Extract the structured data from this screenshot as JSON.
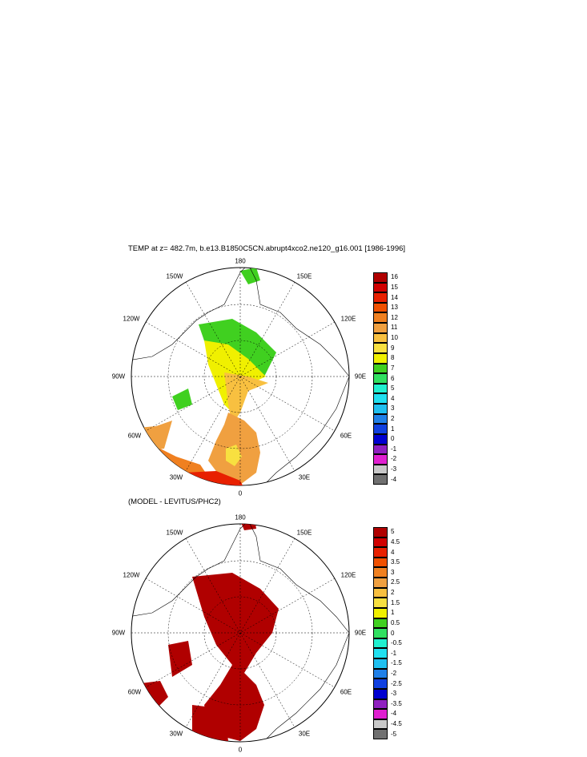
{
  "figure": {
    "title": "TEMP at z= 482.7m, b.e13.B1850C5CN.abrupt4xco2.ne120_g16.001 [1986-1996]",
    "subtitle": "(MODEL - LEVITUS/PHC2)"
  },
  "longitude_labels": [
    "180",
    "150E",
    "120E",
    "90E",
    "60E",
    "30E",
    "0",
    "30W",
    "60W",
    "90W",
    "120W",
    "150W"
  ],
  "panel_top": {
    "colorbar_labels": [
      "16",
      "15",
      "14",
      "13",
      "12",
      "11",
      "10",
      "9",
      "8",
      "7",
      "6",
      "5",
      "4",
      "3",
      "2",
      "1",
      "0",
      "-1",
      "-2",
      "-3",
      "-4"
    ],
    "colorbar_colors": [
      "#b00000",
      "#d00000",
      "#e82000",
      "#f05000",
      "#f08020",
      "#f0a040",
      "#f8c040",
      "#f8e040",
      "#f0f000",
      "#40d020",
      "#30e060",
      "#20f0d0",
      "#20e0f0",
      "#20c0f0",
      "#2080e8",
      "#1040e0",
      "#0000d0",
      "#9020c0",
      "#e020d0",
      "#c8c8c8",
      "#707070"
    ]
  },
  "panel_bottom": {
    "colorbar_labels": [
      "5",
      "4.5",
      "4",
      "3.5",
      "3",
      "2.5",
      "2",
      "1.5",
      "1",
      "0.5",
      "0",
      "-0.5",
      "-1",
      "-1.5",
      "-2",
      "-2.5",
      "-3",
      "-3.5",
      "-4",
      "-4.5",
      "-5"
    ],
    "colorbar_colors": [
      "#b00000",
      "#d00000",
      "#e82000",
      "#f05000",
      "#f08020",
      "#f0a040",
      "#f8c040",
      "#f8e040",
      "#f0f000",
      "#40d020",
      "#30e060",
      "#20f0d0",
      "#20e0f0",
      "#20c0f0",
      "#2080e8",
      "#1040e0",
      "#0000d0",
      "#9020c0",
      "#e020d0",
      "#c8c8c8",
      "#707070"
    ]
  }
}
